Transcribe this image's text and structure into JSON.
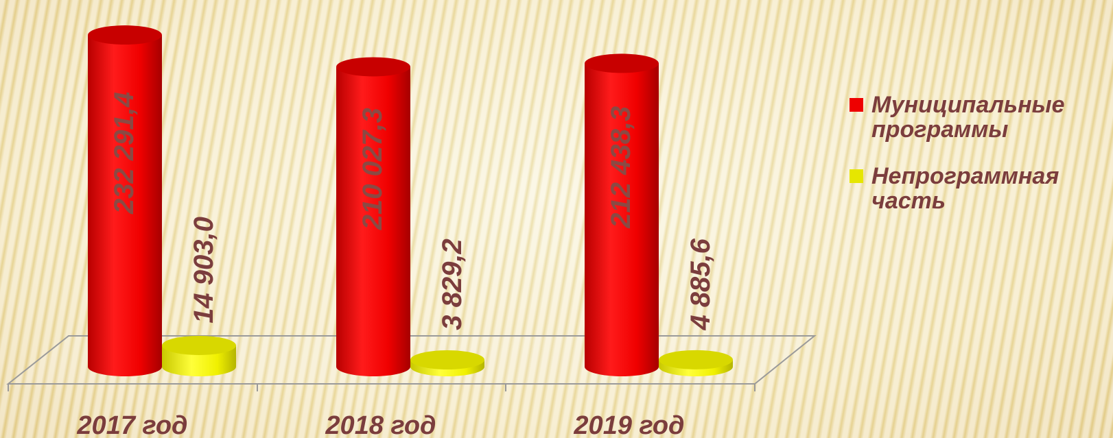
{
  "chart_data": {
    "type": "bar",
    "categories": [
      "2017 год",
      "2018 год",
      "2019 год"
    ],
    "series": [
      {
        "name": "Муниципальные программы",
        "values": [
          232291.4,
          210027.3,
          212438.3
        ],
        "labels": [
          "232 291,4",
          "210 027,3",
          "212 438,3"
        ],
        "color": "#ee0000"
      },
      {
        "name": "Непрограммная часть",
        "values": [
          14903.0,
          3829.2,
          4885.6
        ],
        "labels": [
          "14 903,0",
          "3 829,2",
          "4 885,6"
        ],
        "color": "#e6e600"
      }
    ],
    "legend_position": "right",
    "grid": false,
    "ylim": [
      0,
      240000
    ]
  },
  "colors": {
    "red": "#ee0000",
    "yellow": "#e6e600",
    "label_text": "#7b3d3d",
    "inner_label_text": "#8a4a44"
  }
}
